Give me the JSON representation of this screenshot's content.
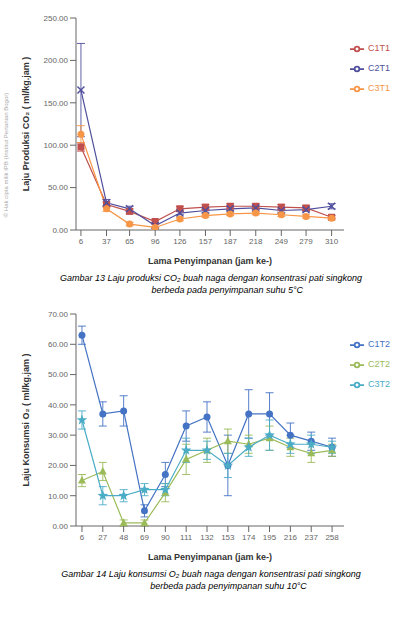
{
  "chart_data": [
    {
      "type": "line",
      "title": "Gambar 13 Laju produksi CO₂ buah naga dengan konsentrasi pati singkong\n             berbeda pada penyimpanan suhu 5°C",
      "xlabel": "Lama Penyimpanan (jam ke-)",
      "ylabel": "Laju Produksi CO₂ ( ml/kg.jam )",
      "xlim": [
        0,
        325
      ],
      "ylim": [
        0,
        250
      ],
      "xticks": [
        6,
        37,
        65,
        96,
        126,
        157,
        187,
        218,
        249,
        279,
        310
      ],
      "yticks": [
        {
          "value": 0,
          "label": "0.00"
        },
        {
          "value": 50,
          "label": "50.00"
        },
        {
          "value": 100,
          "label": "100.00"
        },
        {
          "value": 150,
          "label": "150.00"
        },
        {
          "value": 200,
          "label": "200.00"
        },
        {
          "value": 250,
          "label": "250.00"
        }
      ],
      "grid": false,
      "legend": "right",
      "annotations": [
        {
          "text": "© Hak cipta milik IPB (Institut Pertanian Bogor)",
          "color": "#aaaaaa"
        }
      ],
      "x": [
        6,
        37,
        65,
        96,
        126,
        157,
        187,
        218,
        249,
        279,
        310
      ],
      "series": [
        {
          "name": "C1T1",
          "color": "#c0504d",
          "marker": "square",
          "values": [
            98,
            30,
            22,
            10,
            25,
            27,
            28,
            28,
            27,
            26,
            15
          ],
          "yerr": [
            5,
            3,
            3,
            2,
            3,
            3,
            3,
            3,
            3,
            3,
            2
          ]
        },
        {
          "name": "C2T1",
          "color": "#4f4f9d",
          "marker": "x",
          "values": [
            165,
            32,
            25,
            5,
            20,
            23,
            25,
            26,
            23,
            24,
            28
          ],
          "yerr": [
            55,
            4,
            3,
            2,
            2,
            2,
            2,
            2,
            2,
            2,
            3
          ]
        },
        {
          "name": "C3T1",
          "color": "#f79646",
          "marker": "circle",
          "values": [
            113,
            25,
            7,
            3,
            13,
            17,
            19,
            20,
            18,
            16,
            14
          ],
          "yerr": [
            10,
            3,
            2,
            1,
            2,
            2,
            2,
            2,
            2,
            2,
            1
          ]
        }
      ]
    },
    {
      "type": "line",
      "title": "Gambar 14 Laju konsumsi O₂ buah naga dengan konsentrasi pati singkong\n              berbeda pada penyimpanan suhu 10°C",
      "xlabel": "Lama Penyimpanan (jam ke-)",
      "ylabel": "Laju Konsumsi O₂ ( ml/kg.jam )",
      "xlim": [
        0,
        270
      ],
      "ylim": [
        0,
        70
      ],
      "xticks": [
        6,
        27,
        48,
        69,
        90,
        111,
        132,
        153,
        174,
        195,
        216,
        237,
        258
      ],
      "yticks": [
        {
          "value": 0,
          "label": "0.00"
        },
        {
          "value": 10,
          "label": "10.00"
        },
        {
          "value": 20,
          "label": "20.00"
        },
        {
          "value": 30,
          "label": "30.00"
        },
        {
          "value": 40,
          "label": "40.00"
        },
        {
          "value": 50,
          "label": "50.00"
        },
        {
          "value": 60,
          "label": "60.00"
        },
        {
          "value": 70,
          "label": "70.00"
        }
      ],
      "grid": false,
      "legend": "right",
      "x": [
        6,
        27,
        48,
        69,
        90,
        111,
        132,
        153,
        174,
        195,
        216,
        237,
        258
      ],
      "series": [
        {
          "name": "C1T2",
          "color": "#4472c4",
          "marker": "circle",
          "values": [
            63,
            37,
            38,
            5,
            17,
            33,
            36,
            20,
            37,
            37,
            30,
            28,
            26
          ],
          "yerr": [
            3,
            4,
            5,
            2,
            4,
            5,
            5,
            10,
            8,
            7,
            4,
            3,
            3
          ]
        },
        {
          "name": "C2T2",
          "color": "#9bbb59",
          "marker": "triangle",
          "values": [
            15,
            18,
            1,
            1,
            11,
            22,
            25,
            28,
            27,
            29,
            26,
            24,
            25
          ],
          "yerr": [
            2,
            3,
            1,
            1,
            3,
            5,
            4,
            4,
            3,
            4,
            3,
            3,
            2
          ]
        },
        {
          "name": "C3T2",
          "color": "#4bacc6",
          "marker": "star",
          "values": [
            35,
            10,
            10,
            12,
            12,
            25,
            25,
            20,
            26,
            30,
            27,
            27,
            26
          ],
          "yerr": [
            3,
            3,
            2,
            2,
            2,
            4,
            3,
            4,
            3,
            5,
            3,
            3,
            2
          ]
        }
      ]
    }
  ]
}
